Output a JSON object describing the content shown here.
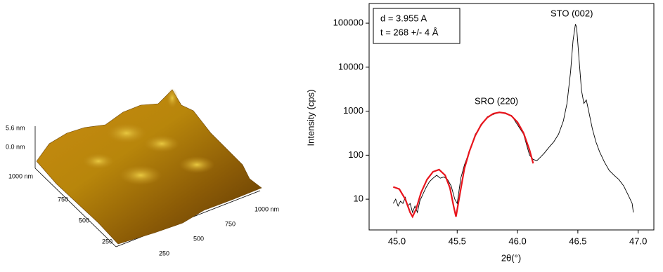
{
  "afm": {
    "z_top": "5.6 nm",
    "z_bottom": "0.0 nm",
    "left_axis": [
      "1000 nm",
      "750",
      "500",
      "250"
    ],
    "right_axis": [
      "250",
      "500",
      "750",
      "1000 nm"
    ]
  },
  "chart_data": {
    "type": "line",
    "xlabel": "2θ(°)",
    "ylabel": "Intensity (cps)",
    "log_y": true,
    "xlim": [
      44.77,
      47.13
    ],
    "ylim": [
      2,
      280000
    ],
    "xticks": [
      {
        "value": 45,
        "label": "45.0"
      },
      {
        "value": 45.5,
        "label": "45.5"
      },
      {
        "value": 46,
        "label": "46.0"
      },
      {
        "value": 46.5,
        "label": "46.5"
      },
      {
        "value": 47,
        "label": "47.0"
      }
    ],
    "yticks": [
      10,
      100,
      1000,
      10000,
      100000
    ],
    "annotations": [
      "d = 3.955 A",
      "t =  268 +/- 4 Å",
      "SRO (220)",
      "STO (002)"
    ],
    "series": [
      {
        "color": "#000000",
        "x": [
          44.97,
          44.99,
          45.01,
          45.03,
          45.05,
          45.07,
          45.09,
          45.11,
          45.13,
          45.15,
          45.17,
          45.19,
          45.21,
          45.24,
          45.27,
          45.3,
          45.33,
          45.36,
          45.39,
          45.42,
          45.45,
          45.48,
          45.5,
          45.53,
          45.56,
          45.6,
          45.65,
          45.75,
          45.85,
          45.95,
          46.05,
          46.1,
          46.13,
          46.16,
          46.19,
          46.22,
          46.26,
          46.3,
          46.34,
          46.38,
          46.41,
          46.44,
          46.46,
          46.48,
          46.49,
          46.51,
          46.53,
          46.55,
          46.57,
          46.59,
          46.62,
          46.65,
          46.68,
          46.72,
          46.76,
          46.8,
          46.84,
          46.88,
          46.92,
          46.95,
          46.96
        ],
        "values": [
          8,
          10,
          7,
          9,
          8,
          11,
          7,
          8,
          5,
          7,
          5,
          9,
          12,
          18,
          25,
          30,
          35,
          30,
          32,
          28,
          20,
          10,
          8,
          30,
          60,
          120,
          300,
          750,
          950,
          800,
          300,
          100,
          80,
          75,
          90,
          110,
          150,
          200,
          300,
          600,
          1500,
          8000,
          40000,
          95000,
          80000,
          15000,
          3000,
          1500,
          1800,
          1000,
          400,
          200,
          120,
          70,
          45,
          35,
          28,
          20,
          12,
          8,
          5
        ]
      },
      {
        "color": "#e8141c",
        "x": [
          44.97,
          45.02,
          45.07,
          45.11,
          45.13,
          45.16,
          45.2,
          45.25,
          45.3,
          45.35,
          45.4,
          45.44,
          45.47,
          45.49,
          45.52,
          45.56,
          45.6,
          45.65,
          45.7,
          45.75,
          45.8,
          45.85,
          45.9,
          45.95,
          46.0,
          46.05,
          46.1,
          46.13
        ],
        "values": [
          19,
          17,
          10,
          5,
          4,
          6,
          14,
          28,
          42,
          47,
          35,
          18,
          7,
          4,
          12,
          50,
          120,
          280,
          500,
          720,
          880,
          940,
          900,
          780,
          560,
          320,
          130,
          65
        ]
      }
    ]
  }
}
